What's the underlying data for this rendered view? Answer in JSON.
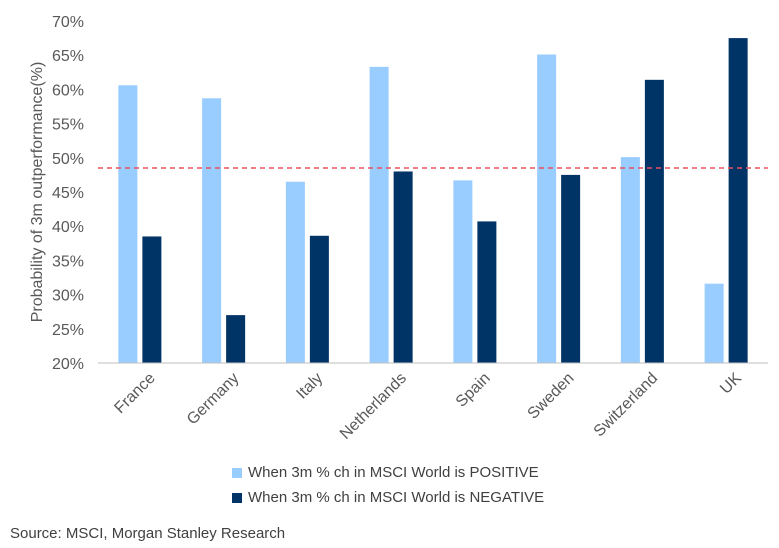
{
  "chart_data": {
    "type": "bar",
    "title": "",
    "xlabel": "",
    "ylabel": "Probability of 3m outperformance(%)",
    "ylim": [
      20,
      70
    ],
    "yticks": [
      20,
      25,
      30,
      35,
      40,
      45,
      50,
      55,
      60,
      65,
      70
    ],
    "ytick_suffix": "%",
    "categories": [
      "France",
      "Germany",
      "Italy",
      "Netherlands",
      "Spain",
      "Sweden",
      "Switzerland",
      "UK"
    ],
    "series": [
      {
        "name": "When 3m % ch in MSCI World is POSITIVE",
        "color": "#99CCFF",
        "values": [
          60.6,
          58.7,
          46.5,
          63.3,
          46.7,
          65.1,
          50.1,
          31.6
        ]
      },
      {
        "name": "When 3m % ch in MSCI World is NEGATIVE",
        "color": "#003366",
        "values": [
          38.5,
          27.0,
          38.6,
          48.0,
          40.7,
          47.5,
          61.4,
          67.5
        ]
      }
    ],
    "reference_line": {
      "value": 48.5,
      "color": "#E8505B",
      "style": "dashed"
    },
    "grid": false,
    "legend": "bottom"
  },
  "source": "Source: MSCI, Morgan Stanley Research"
}
